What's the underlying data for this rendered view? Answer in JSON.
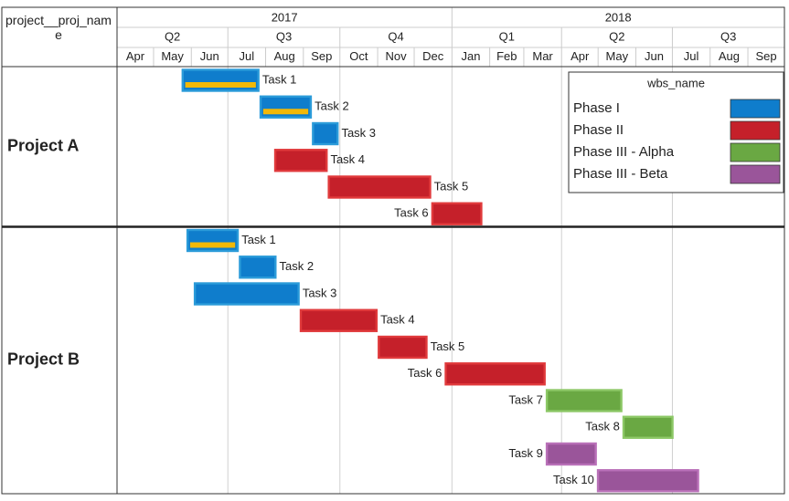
{
  "header_label": "project__proj_name",
  "chart_data": {
    "type": "gantt",
    "xlim": [
      "2017-04-01",
      "2018-10-01"
    ],
    "years": [
      2017,
      2018
    ],
    "quarters": [
      "Q2",
      "Q3",
      "Q4",
      "Q1",
      "Q2",
      "Q3"
    ],
    "months": [
      "Apr",
      "May",
      "Jun",
      "Jul",
      "Aug",
      "Sep",
      "Oct",
      "Nov",
      "Dec",
      "Jan",
      "Feb",
      "Mar",
      "Apr",
      "May",
      "Jun",
      "Jul",
      "Aug",
      "Sep"
    ],
    "grid": true,
    "legend": {
      "title": "wbs_name",
      "position": "upper right"
    },
    "progress_color": "#f2b807",
    "phases": [
      {
        "name": "Phase I",
        "color": "#0f7dcc",
        "border": "#2b9bd9"
      },
      {
        "name": "Phase II",
        "color": "#c5202a",
        "border": "#e03a3c"
      },
      {
        "name": "Phase III - Alpha",
        "color": "#6aa843",
        "border": "#8dc867"
      },
      {
        "name": "Phase III - Beta",
        "color": "#9a559a",
        "border": "#b970b8"
      }
    ],
    "groups": [
      {
        "name": "Project A",
        "tasks": [
          {
            "name": "Task 1",
            "phase": "Phase I",
            "start": "2017-05-24",
            "end": "2017-07-27",
            "progress": 100
          },
          {
            "name": "Task 2",
            "phase": "Phase I",
            "start": "2017-07-27",
            "end": "2017-09-08",
            "progress": 100
          },
          {
            "name": "Task 3",
            "phase": "Phase I",
            "start": "2017-09-08",
            "end": "2017-09-30"
          },
          {
            "name": "Task 4",
            "phase": "Phase II",
            "start": "2017-08-08",
            "end": "2017-09-21"
          },
          {
            "name": "Task 5",
            "phase": "Phase II",
            "start": "2017-09-21",
            "end": "2017-12-15"
          },
          {
            "name": "Task 6",
            "phase": "Phase II",
            "start": "2017-12-15",
            "end": "2018-01-26"
          }
        ]
      },
      {
        "name": "Project B",
        "tasks": [
          {
            "name": "Task 1",
            "phase": "Phase I",
            "start": "2017-05-28",
            "end": "2017-07-10",
            "progress": 100
          },
          {
            "name": "Task 2",
            "phase": "Phase I",
            "start": "2017-07-10",
            "end": "2017-08-10"
          },
          {
            "name": "Task 3",
            "phase": "Phase I",
            "start": "2017-06-03",
            "end": "2017-08-29"
          },
          {
            "name": "Task 4",
            "phase": "Phase II",
            "start": "2017-08-29",
            "end": "2017-11-01"
          },
          {
            "name": "Task 5",
            "phase": "Phase II",
            "start": "2017-11-01",
            "end": "2017-12-12"
          },
          {
            "name": "Task 6",
            "phase": "Phase II",
            "start": "2017-12-26",
            "end": "2018-03-19"
          },
          {
            "name": "Task 7",
            "phase": "Phase III - Alpha",
            "start": "2018-03-19",
            "end": "2018-05-21"
          },
          {
            "name": "Task 8",
            "phase": "Phase III - Alpha",
            "start": "2018-05-21",
            "end": "2018-07-02"
          },
          {
            "name": "Task 9",
            "phase": "Phase III - Beta",
            "start": "2018-03-19",
            "end": "2018-04-30"
          },
          {
            "name": "Task 10",
            "phase": "Phase III - Beta",
            "start": "2018-04-30",
            "end": "2018-07-23"
          }
        ]
      }
    ]
  }
}
